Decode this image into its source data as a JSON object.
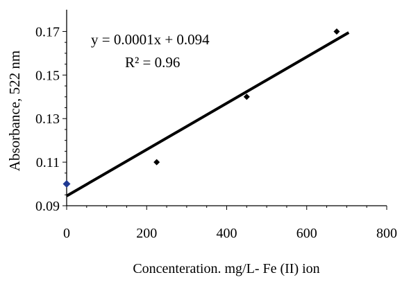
{
  "chart_data": {
    "type": "scatter",
    "title": "",
    "xlabel": "Concenteration. mg/L- Fe (II) ion",
    "ylabel": "Absorbance,  522 nm",
    "xlim": [
      0,
      800
    ],
    "ylim": [
      0.09,
      0.18
    ],
    "xticks": [
      0,
      200,
      400,
      600,
      800
    ],
    "yticks": [
      0.09,
      0.11,
      0.13,
      0.15,
      0.17
    ],
    "xtick_labels": [
      "0",
      "200",
      "400",
      "600",
      "800"
    ],
    "ytick_labels": [
      "0.09",
      "0.11",
      "0.13",
      "0.15",
      "0.17"
    ],
    "grid": false,
    "series": [
      {
        "marker": "diamond",
        "color": "#000000",
        "points": [
          {
            "x": 225,
            "y": 0.11
          },
          {
            "x": 450,
            "y": 0.14
          },
          {
            "x": 675,
            "y": 0.17
          }
        ]
      },
      {
        "marker": "diamond",
        "color": "#1f3a93",
        "points": [
          {
            "x": 0,
            "y": 0.1
          }
        ]
      }
    ],
    "trendline": {
      "type": "linear",
      "x_range": [
        0,
        705
      ],
      "y_range": [
        0.0945,
        0.1695
      ],
      "equation": "y = 0.0001x + 0.094",
      "r2_label": "R² = 0.96"
    }
  }
}
